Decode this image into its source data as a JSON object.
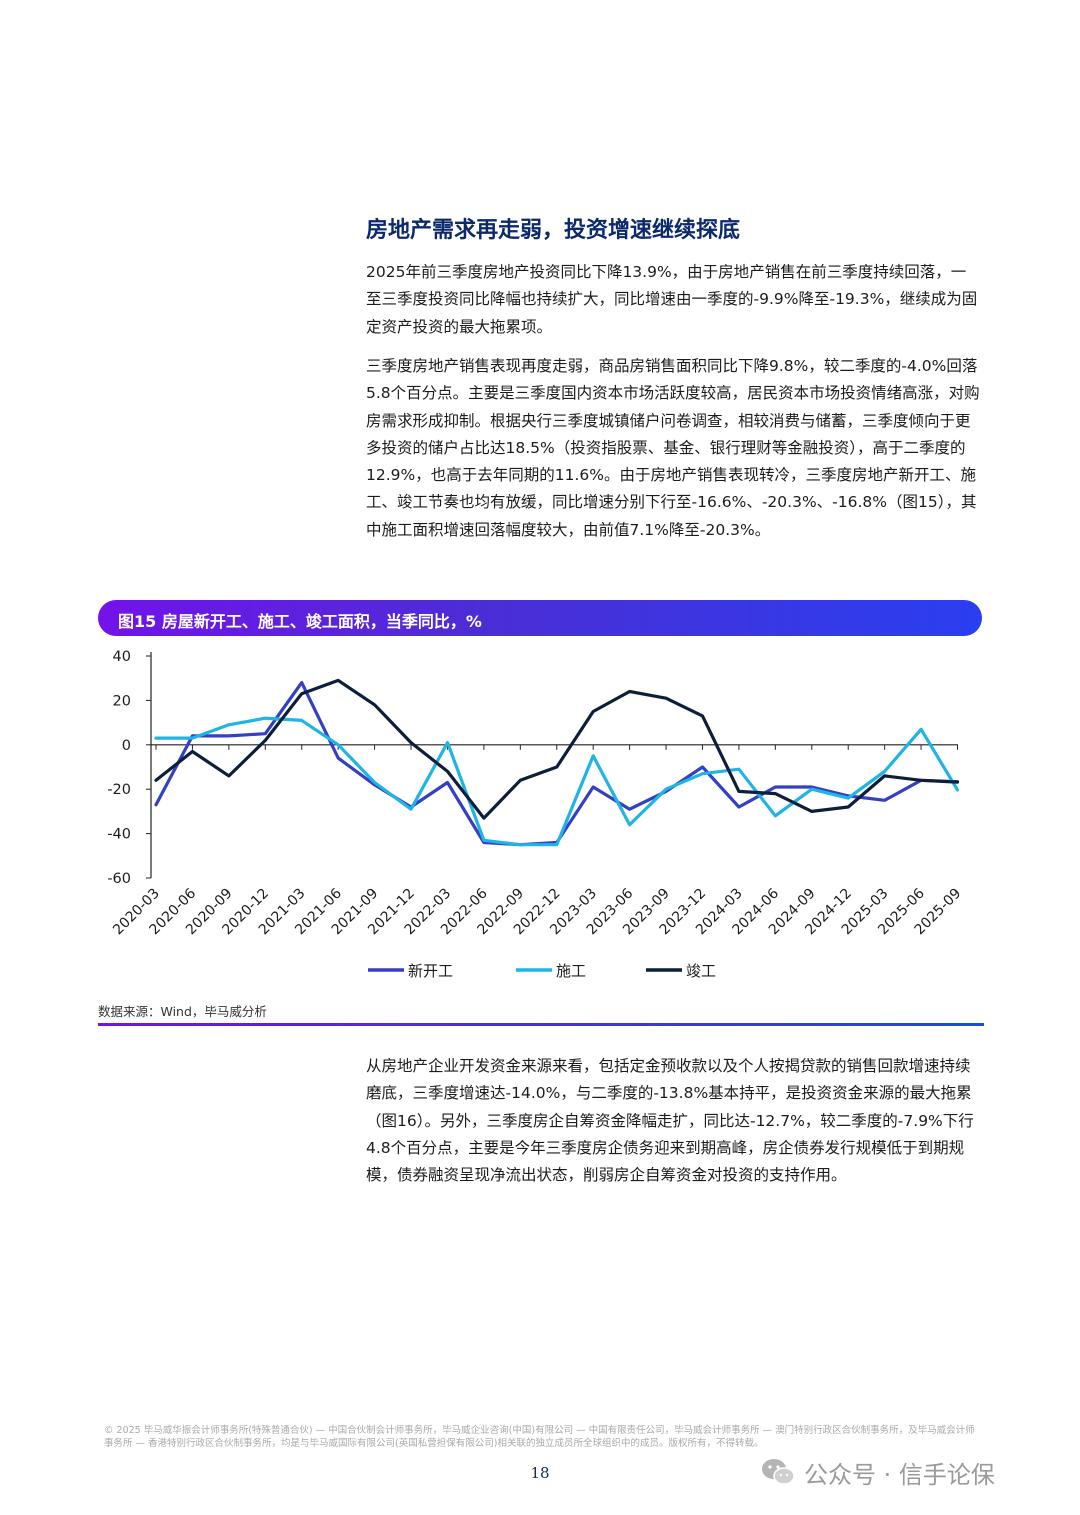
{
  "section": {
    "heading": "房地产需求再走弱，投资增速继续探底",
    "paragraphs": [
      "2025年前三季度房地产投资同比下降13.9%，由于房地产销售在前三季度持续回落，一至三季度投资同比降幅也持续扩大，同比增速由一季度的-9.9%降至-19.3%，继续成为固定资产投资的最大拖累项。",
      "三季度房地产销售表现再度走弱，商品房销售面积同比下降9.8%，较二季度的-4.0%回落5.8个百分点。主要是三季度国内资本市场活跃度较高，居民资本市场投资情绪高涨，对购房需求形成抑制。根据央行三季度城镇储户问卷调查，相较消费与储蓄，三季度倾向于更多投资的储户占比达18.5%（投资指股票、基金、银行理财等金融投资），高于二季度的12.9%，也高于去年同期的11.6%。由于房地产销售表现转冷，三季度房地产新开工、施工、竣工节奏也均有放缓，同比增速分别下行至-16.6%、-20.3%、-16.8%（图15），其中施工面积增速回落幅度较大，由前值7.1%降至-20.3%。",
      "从房地产企业开发资金来源来看，包括定金预收款以及个人按揭贷款的销售回款增速持续磨底，三季度增速达-14.0%，与二季度的-13.8%基本持平，是投资资金来源的最大拖累（图16）。另外，三季度房企自筹资金降幅走扩，同比达-12.7%，较二季度的-7.9%下行4.8个百分点，主要是今年三季度房企债务迎来到期高峰，房企债券发行规模低于到期规模，债券融资呈现净流出状态，削弱房企自筹资金对投资的支持作用。"
    ]
  },
  "figure": {
    "title": "图15 房屋新开工、施工、竣工面积，当季同比，%",
    "source": "数据来源：Wind，毕马威分析"
  },
  "chart_data": {
    "type": "line",
    "title": "图15 房屋新开工、施工、竣工面积，当季同比，%",
    "xlabel": "",
    "ylabel": "",
    "ylim": [
      -60,
      40
    ],
    "yticks": [
      40,
      20,
      0,
      -20,
      -40,
      -60
    ],
    "grid": false,
    "legend_position": "bottom",
    "categories": [
      "2020-03",
      "2020-06",
      "2020-09",
      "2020-12",
      "2021-03",
      "2021-06",
      "2021-09",
      "2021-12",
      "2022-03",
      "2022-06",
      "2022-09",
      "2022-12",
      "2023-03",
      "2023-06",
      "2023-09",
      "2023-12",
      "2024-03",
      "2024-06",
      "2024-09",
      "2024-12",
      "2025-03",
      "2025-06",
      "2025-09"
    ],
    "series": [
      {
        "name": "新开工",
        "color": "#3340c4",
        "values": [
          -27,
          4,
          4,
          5,
          28,
          -6,
          -18,
          -28,
          -17,
          -44,
          -45,
          -44,
          -19,
          -29,
          -21,
          -10,
          -28,
          -19,
          -19,
          -23,
          -25,
          -16,
          -16.6
        ]
      },
      {
        "name": "施工",
        "color": "#1fb4e6",
        "values": [
          3,
          3,
          9,
          12,
          11,
          0,
          -17,
          -29,
          1,
          -43,
          -45,
          -45,
          -5,
          -36,
          -20,
          -13,
          -11,
          -32,
          -20,
          -24,
          -12,
          7,
          -20.3
        ]
      },
      {
        "name": "竣工",
        "color": "#0b1f3a",
        "values": [
          -16,
          -3,
          -14,
          2,
          23,
          29,
          18,
          1,
          -12,
          -33,
          -16,
          -10,
          15,
          24,
          21,
          13,
          -21,
          -22,
          -30,
          -28,
          -14,
          -16,
          -16.8
        ]
      }
    ]
  },
  "footer": {
    "note": "© 2025 毕马威华振会计师事务所(特殊普通合伙) — 中国合伙制会计师事务所，毕马威企业咨询(中国)有限公司 — 中国有限责任公司，毕马威会计师事务所 — 澳门特别行政区合伙制事务所，及毕马威会计师事务所 — 香港特别行政区合伙制事务所，均是与毕马威国际有限公司(英国私营担保有限公司)相关联的独立成员所全球组织中的成员。版权所有，不得转载。",
    "page_number": "18",
    "watermark": "公众号 · 信手论保"
  }
}
